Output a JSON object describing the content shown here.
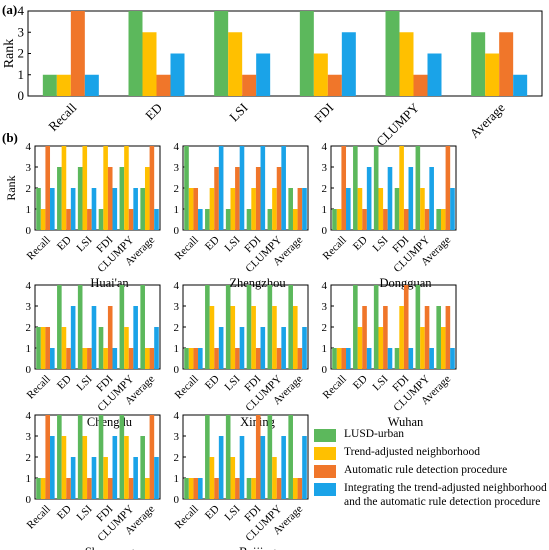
{
  "colors": {
    "lusd": "#5cb85c",
    "trend": "#ffc000",
    "auto": "#f0762a",
    "integrated": "#1aa3e8"
  },
  "legend": {
    "items": [
      {
        "label": "LUSD-urban",
        "color": "#5cb85c"
      },
      {
        "label": "Trend-adjusted neighborhood",
        "color": "#ffc000"
      },
      {
        "label": "Automatic rule detection procedure",
        "color": "#f0762a"
      },
      {
        "label": "Integrating the trend-adjusted neighborhood and the automatic rule detection procedure",
        "color": "#1aa3e8"
      }
    ]
  },
  "chart_data": [
    {
      "panel_label": "(a)",
      "type": "bar",
      "ylabel": "Rank",
      "ylim": [
        0,
        4
      ],
      "yticks": [
        "0",
        "1",
        "2",
        "3",
        "4"
      ],
      "categories": [
        "Recall",
        "ED",
        "LSI",
        "FDI",
        "CLUMPY",
        "Average"
      ],
      "series": [
        {
          "values": [
            1,
            4,
            4,
            4,
            4,
            3
          ]
        },
        {
          "values": [
            1,
            3,
            3,
            2,
            3,
            2
          ]
        },
        {
          "values": [
            4,
            1,
            1,
            1,
            1,
            3
          ]
        },
        {
          "values": [
            1,
            2,
            2,
            3,
            2,
            1
          ]
        }
      ]
    },
    {
      "panel_label": "(b)",
      "type": "bar",
      "title": "Huai'an",
      "ylabel": "Rank",
      "ylim": [
        0,
        4
      ],
      "yticks": [
        "0",
        "1",
        "2",
        "3",
        "4"
      ],
      "categories": [
        "Recall",
        "ED",
        "LSI",
        "FDI",
        "CLUMPY",
        "Average"
      ],
      "series": [
        {
          "values": [
            2,
            3,
            3,
            1,
            3,
            2
          ]
        },
        {
          "values": [
            1,
            4,
            4,
            4,
            4,
            3
          ]
        },
        {
          "values": [
            4,
            1,
            1,
            3,
            1,
            4
          ]
        },
        {
          "values": [
            2,
            2,
            2,
            2,
            2,
            1
          ]
        }
      ]
    },
    {
      "type": "bar",
      "title": "Zhengzhou",
      "ylim": [
        0,
        4
      ],
      "yticks": [
        "0",
        "1",
        "2",
        "3",
        "4"
      ],
      "categories": [
        "Recall",
        "ED",
        "LSI",
        "FDI",
        "CLUMPY",
        "Average"
      ],
      "series": [
        {
          "values": [
            4,
            1,
            1,
            1,
            1,
            2
          ]
        },
        {
          "values": [
            2,
            2,
            2,
            2,
            2,
            1
          ]
        },
        {
          "values": [
            2,
            3,
            3,
            3,
            3,
            2
          ]
        },
        {
          "values": [
            1,
            4,
            4,
            4,
            4,
            2
          ]
        }
      ]
    },
    {
      "type": "bar",
      "title": "Dongguan",
      "ylim": [
        0,
        4
      ],
      "yticks": [
        "0",
        "1",
        "2",
        "3",
        "4"
      ],
      "categories": [
        "Recall",
        "ED",
        "LSI",
        "FDI",
        "CLUMPY",
        "Average"
      ],
      "series": [
        {
          "values": [
            1,
            4,
            4,
            2,
            4,
            1
          ]
        },
        {
          "values": [
            1,
            2,
            2,
            4,
            2,
            1
          ]
        },
        {
          "values": [
            4,
            1,
            1,
            1,
            1,
            4
          ]
        },
        {
          "values": [
            2,
            3,
            3,
            3,
            3,
            2
          ]
        }
      ]
    },
    {
      "type": "bar",
      "title": "Chengdu",
      "ylim": [
        0,
        4
      ],
      "yticks": [
        "0",
        "1",
        "2",
        "3",
        "4"
      ],
      "categories": [
        "Recall",
        "ED",
        "LSI",
        "FDI",
        "CLUMPY",
        "Average"
      ],
      "series": [
        {
          "values": [
            2,
            4,
            4,
            2,
            4,
            4
          ]
        },
        {
          "values": [
            2,
            2,
            1,
            1,
            2,
            1
          ]
        },
        {
          "values": [
            2,
            1,
            1,
            3,
            1,
            1
          ]
        },
        {
          "values": [
            1,
            3,
            3,
            1,
            3,
            2
          ]
        }
      ]
    },
    {
      "type": "bar",
      "title": "Xining",
      "ylim": [
        0,
        4
      ],
      "yticks": [
        "0",
        "1",
        "2",
        "3",
        "4"
      ],
      "categories": [
        "Recall",
        "ED",
        "LSI",
        "FDI",
        "CLUMPY",
        "Average"
      ],
      "series": [
        {
          "values": [
            1,
            4,
            4,
            4,
            4,
            4
          ]
        },
        {
          "values": [
            1,
            3,
            3,
            3,
            3,
            3
          ]
        },
        {
          "values": [
            1,
            1,
            1,
            1,
            1,
            1
          ]
        },
        {
          "values": [
            1,
            2,
            2,
            2,
            2,
            2
          ]
        }
      ]
    },
    {
      "type": "bar",
      "title": "Wuhan",
      "ylim": [
        0,
        4
      ],
      "yticks": [
        "0",
        "1",
        "2",
        "3",
        "4"
      ],
      "categories": [
        "Recall",
        "ED",
        "LSI",
        "FDI",
        "CLUMPY",
        "Average"
      ],
      "series": [
        {
          "values": [
            1,
            4,
            4,
            1,
            4,
            3
          ]
        },
        {
          "values": [
            1,
            2,
            2,
            3,
            2,
            2
          ]
        },
        {
          "values": [
            1,
            3,
            3,
            4,
            3,
            3
          ]
        },
        {
          "values": [
            1,
            1,
            1,
            1,
            1,
            1
          ]
        }
      ]
    },
    {
      "type": "bar",
      "title": "Shenyang",
      "ylim": [
        0,
        4
      ],
      "yticks": [
        "0",
        "1",
        "2",
        "3",
        "4"
      ],
      "categories": [
        "Recall",
        "ED",
        "LSI",
        "FDI",
        "CLUMPY",
        "Average"
      ],
      "series": [
        {
          "values": [
            1,
            4,
            4,
            4,
            4,
            3
          ]
        },
        {
          "values": [
            1,
            3,
            3,
            2,
            3,
            1
          ]
        },
        {
          "values": [
            4,
            1,
            1,
            1,
            1,
            4
          ]
        },
        {
          "values": [
            3,
            2,
            2,
            3,
            2,
            2
          ]
        }
      ]
    },
    {
      "type": "bar",
      "title": "Beijing",
      "ylim": [
        0,
        4
      ],
      "yticks": [
        "0",
        "1",
        "2",
        "3",
        "4"
      ],
      "categories": [
        "Recall",
        "ED",
        "LSI",
        "FDI",
        "CLUMPY",
        "Average"
      ],
      "series": [
        {
          "values": [
            1,
            4,
            4,
            1,
            4,
            4
          ]
        },
        {
          "values": [
            1,
            2,
            2,
            1,
            2,
            1
          ]
        },
        {
          "values": [
            1,
            1,
            1,
            4,
            1,
            1
          ]
        },
        {
          "values": [
            1,
            3,
            3,
            3,
            3,
            3
          ]
        }
      ]
    }
  ]
}
